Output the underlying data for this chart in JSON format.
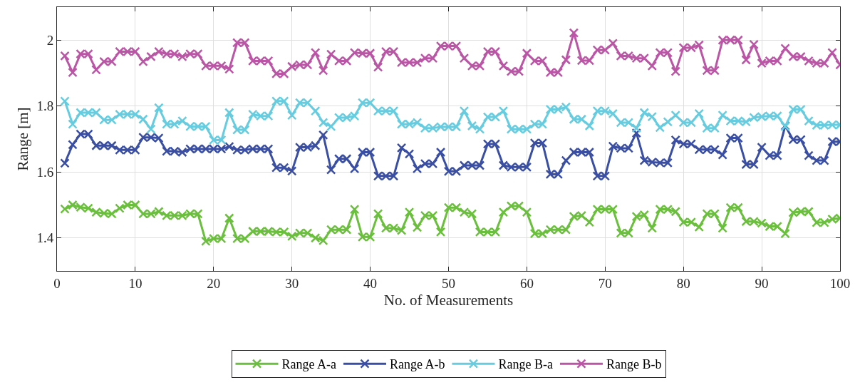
{
  "chart_data": {
    "type": "line",
    "xlabel": "No. of Measurements",
    "ylabel": "Range [m]",
    "x": [
      1,
      2,
      3,
      4,
      5,
      6,
      7,
      8,
      9,
      10,
      11,
      12,
      13,
      14,
      15,
      16,
      17,
      18,
      19,
      20,
      21,
      22,
      23,
      24,
      25,
      26,
      27,
      28,
      29,
      30,
      31,
      32,
      33,
      34,
      35,
      36,
      37,
      38,
      39,
      40,
      41,
      42,
      43,
      44,
      45,
      46,
      47,
      48,
      49,
      50,
      51,
      52,
      53,
      54,
      55,
      56,
      57,
      58,
      59,
      60,
      61,
      62,
      63,
      64,
      65,
      66,
      67,
      68,
      69,
      70,
      71,
      72,
      73,
      74,
      75,
      76,
      77,
      78,
      79,
      80,
      81,
      82,
      83,
      84,
      85,
      86,
      87,
      88,
      89,
      90,
      91,
      92,
      93,
      94,
      95,
      96,
      97,
      98,
      99,
      100
    ],
    "series": [
      {
        "name": "Range A-a",
        "color": "#6abf3c",
        "values": [
          1.488,
          1.5,
          1.493,
          1.49,
          1.478,
          1.475,
          1.473,
          1.49,
          1.5,
          1.5,
          1.473,
          1.473,
          1.48,
          1.468,
          1.468,
          1.468,
          1.473,
          1.473,
          1.39,
          1.398,
          1.398,
          1.46,
          1.398,
          1.398,
          1.42,
          1.42,
          1.42,
          1.418,
          1.418,
          1.405,
          1.415,
          1.415,
          1.4,
          1.392,
          1.425,
          1.425,
          1.425,
          1.487,
          1.403,
          1.403,
          1.473,
          1.43,
          1.43,
          1.423,
          1.478,
          1.432,
          1.468,
          1.468,
          1.418,
          1.492,
          1.492,
          1.478,
          1.473,
          1.418,
          1.418,
          1.418,
          1.478,
          1.497,
          1.497,
          1.478,
          1.413,
          1.413,
          1.425,
          1.425,
          1.425,
          1.465,
          1.468,
          1.448,
          1.487,
          1.487,
          1.487,
          1.415,
          1.415,
          1.465,
          1.47,
          1.43,
          1.487,
          1.487,
          1.48,
          1.448,
          1.448,
          1.433,
          1.473,
          1.473,
          1.43,
          1.492,
          1.492,
          1.45,
          1.45,
          1.445,
          1.435,
          1.435,
          1.413,
          1.477,
          1.48,
          1.48,
          1.447,
          1.447,
          1.457,
          1.46
        ]
      },
      {
        "name": "Range A-b",
        "color": "#3a4fa3",
        "values": [
          1.627,
          1.683,
          1.715,
          1.715,
          1.68,
          1.68,
          1.68,
          1.667,
          1.667,
          1.667,
          1.705,
          1.705,
          1.703,
          1.663,
          1.663,
          1.66,
          1.67,
          1.67,
          1.67,
          1.67,
          1.67,
          1.677,
          1.667,
          1.667,
          1.67,
          1.67,
          1.67,
          1.613,
          1.613,
          1.603,
          1.675,
          1.675,
          1.68,
          1.712,
          1.607,
          1.64,
          1.64,
          1.61,
          1.66,
          1.66,
          1.588,
          1.588,
          1.588,
          1.673,
          1.655,
          1.61,
          1.625,
          1.625,
          1.66,
          1.602,
          1.602,
          1.62,
          1.62,
          1.62,
          1.685,
          1.685,
          1.62,
          1.615,
          1.615,
          1.615,
          1.688,
          1.688,
          1.593,
          1.593,
          1.635,
          1.66,
          1.66,
          1.66,
          1.588,
          1.588,
          1.678,
          1.672,
          1.672,
          1.718,
          1.635,
          1.63,
          1.628,
          1.628,
          1.697,
          1.685,
          1.685,
          1.668,
          1.668,
          1.668,
          1.652,
          1.703,
          1.703,
          1.623,
          1.623,
          1.675,
          1.65,
          1.65,
          1.74,
          1.698,
          1.698,
          1.65,
          1.635,
          1.635,
          1.692,
          1.692
        ]
      },
      {
        "name": "Range B-a",
        "color": "#66cce0",
        "values": [
          1.815,
          1.745,
          1.78,
          1.78,
          1.78,
          1.758,
          1.758,
          1.775,
          1.775,
          1.775,
          1.76,
          1.73,
          1.795,
          1.745,
          1.745,
          1.755,
          1.738,
          1.738,
          1.738,
          1.697,
          1.697,
          1.78,
          1.728,
          1.728,
          1.775,
          1.77,
          1.77,
          1.815,
          1.815,
          1.772,
          1.81,
          1.81,
          1.785,
          1.75,
          1.738,
          1.765,
          1.765,
          1.77,
          1.81,
          1.81,
          1.785,
          1.785,
          1.785,
          1.745,
          1.745,
          1.75,
          1.733,
          1.733,
          1.737,
          1.737,
          1.737,
          1.785,
          1.74,
          1.73,
          1.767,
          1.767,
          1.785,
          1.73,
          1.73,
          1.73,
          1.745,
          1.745,
          1.79,
          1.79,
          1.797,
          1.76,
          1.76,
          1.74,
          1.785,
          1.785,
          1.777,
          1.75,
          1.75,
          1.733,
          1.78,
          1.768,
          1.735,
          1.752,
          1.772,
          1.75,
          1.75,
          1.777,
          1.733,
          1.733,
          1.772,
          1.755,
          1.755,
          1.752,
          1.765,
          1.768,
          1.77,
          1.77,
          1.738,
          1.79,
          1.79,
          1.755,
          1.742,
          1.742,
          1.743,
          1.743
        ]
      },
      {
        "name": "Range B-b",
        "color": "#bb55a5",
        "values": [
          1.952,
          1.902,
          1.958,
          1.958,
          1.91,
          1.935,
          1.935,
          1.965,
          1.965,
          1.965,
          1.935,
          1.95,
          1.965,
          1.958,
          1.958,
          1.95,
          1.958,
          1.958,
          1.922,
          1.922,
          1.922,
          1.912,
          1.992,
          1.992,
          1.937,
          1.937,
          1.937,
          1.898,
          1.898,
          1.92,
          1.925,
          1.925,
          1.962,
          1.908,
          1.957,
          1.937,
          1.937,
          1.962,
          1.96,
          1.96,
          1.918,
          1.965,
          1.965,
          1.932,
          1.932,
          1.932,
          1.945,
          1.945,
          1.982,
          1.982,
          1.982,
          1.945,
          1.922,
          1.922,
          1.965,
          1.965,
          1.922,
          1.905,
          1.905,
          1.96,
          1.937,
          1.937,
          1.902,
          1.902,
          1.94,
          2.022,
          1.938,
          1.938,
          1.97,
          1.97,
          1.99,
          1.952,
          1.952,
          1.945,
          1.945,
          1.922,
          1.962,
          1.962,
          1.905,
          1.977,
          1.977,
          1.985,
          1.908,
          1.908,
          2.0,
          2.0,
          2.0,
          1.94,
          1.987,
          1.93,
          1.937,
          1.937,
          1.975,
          1.95,
          1.95,
          1.937,
          1.93,
          1.93,
          1.962,
          1.925
        ]
      }
    ],
    "xlim": [
      0,
      100
    ],
    "xticks": [
      0,
      10,
      20,
      30,
      40,
      50,
      60,
      70,
      80,
      90,
      100
    ],
    "ylim": [
      1.3,
      2.1
    ],
    "yticks": [
      1.4,
      1.6,
      1.8,
      2
    ],
    "grid": true,
    "legend": "bottom",
    "marker": "cross",
    "line_style": "solid"
  }
}
